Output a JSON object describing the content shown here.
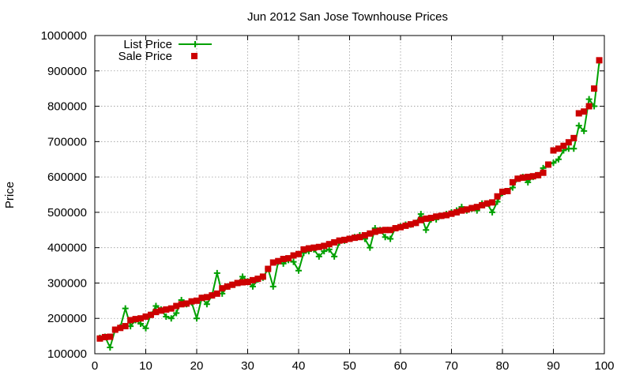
{
  "chart_data": {
    "type": "line",
    "title": "Jun 2012 San Jose Townhouse Prices",
    "xlabel": "",
    "ylabel": "Price",
    "xlim": [
      0,
      100
    ],
    "ylim": [
      100000,
      1000000
    ],
    "x_ticks": [
      "0",
      "10",
      "20",
      "30",
      "40",
      "50",
      "60",
      "70",
      "80",
      "90",
      "100"
    ],
    "y_ticks": [
      "100000",
      "200000",
      "300000",
      "400000",
      "500000",
      "600000",
      "700000",
      "800000",
      "900000",
      "1000000"
    ],
    "grid": true,
    "legend_position": "top-left",
    "x": [
      1,
      2,
      3,
      4,
      5,
      6,
      7,
      8,
      9,
      10,
      11,
      12,
      13,
      14,
      15,
      16,
      17,
      18,
      19,
      20,
      21,
      22,
      23,
      24,
      25,
      26,
      27,
      28,
      29,
      30,
      31,
      32,
      33,
      34,
      35,
      36,
      37,
      38,
      39,
      40,
      41,
      42,
      43,
      44,
      45,
      46,
      47,
      48,
      49,
      50,
      51,
      52,
      53,
      54,
      55,
      56,
      57,
      58,
      59,
      60,
      61,
      62,
      63,
      64,
      65,
      66,
      67,
      68,
      69,
      70,
      71,
      72,
      73,
      74,
      75,
      76,
      77,
      78,
      79,
      80,
      81,
      82,
      83,
      84,
      85,
      86,
      87,
      88,
      89,
      90,
      91,
      92,
      93,
      94,
      95,
      96,
      97,
      98,
      99
    ],
    "series": [
      {
        "name": "List Price",
        "color": "#00a000",
        "marker": "plus",
        "style": "line+points",
        "values": [
          145000,
          148000,
          118000,
          168000,
          175000,
          228000,
          178000,
          195000,
          185000,
          172000,
          210000,
          235000,
          225000,
          205000,
          200000,
          215000,
          252000,
          240000,
          245000,
          200000,
          258000,
          240000,
          265000,
          328000,
          270000,
          290000,
          295000,
          300000,
          318000,
          305000,
          290000,
          310000,
          315000,
          340000,
          290000,
          360000,
          355000,
          365000,
          360000,
          335000,
          385000,
          390000,
          395000,
          375000,
          390000,
          395000,
          375000,
          415000,
          420000,
          425000,
          430000,
          435000,
          425000,
          400000,
          455000,
          450000,
          430000,
          425000,
          455000,
          460000,
          465000,
          465000,
          470000,
          495000,
          450000,
          480000,
          480000,
          490000,
          495000,
          500000,
          505000,
          515000,
          505000,
          510000,
          505000,
          525000,
          525000,
          500000,
          530000,
          555000,
          560000,
          570000,
          595000,
          600000,
          585000,
          600000,
          605000,
          625000,
          635000,
          640000,
          650000,
          675000,
          680000,
          680000,
          745000,
          730000,
          820000,
          800000,
          925000
        ]
      },
      {
        "name": "Sale Price",
        "color": "#cc0000",
        "marker": "square",
        "style": "points",
        "values": [
          143000,
          147000,
          148000,
          168000,
          173000,
          178000,
          195000,
          198000,
          200000,
          205000,
          210000,
          218000,
          222000,
          225000,
          228000,
          235000,
          240000,
          242000,
          248000,
          250000,
          258000,
          260000,
          265000,
          270000,
          285000,
          290000,
          295000,
          300000,
          302000,
          303000,
          308000,
          312000,
          318000,
          340000,
          358000,
          362000,
          368000,
          370000,
          378000,
          382000,
          395000,
          398000,
          400000,
          402000,
          405000,
          410000,
          415000,
          420000,
          422000,
          425000,
          428000,
          430000,
          435000,
          440000,
          445000,
          448000,
          450000,
          450000,
          455000,
          458000,
          462000,
          466000,
          470000,
          478000,
          482000,
          484000,
          488000,
          490000,
          492000,
          496000,
          500000,
          505000,
          508000,
          512000,
          515000,
          520000,
          525000,
          528000,
          545000,
          558000,
          560000,
          585000,
          595000,
          598000,
          600000,
          602000,
          605000,
          612000,
          635000,
          675000,
          680000,
          688000,
          698000,
          710000,
          780000,
          785000,
          800000,
          850000,
          930000
        ]
      }
    ]
  }
}
